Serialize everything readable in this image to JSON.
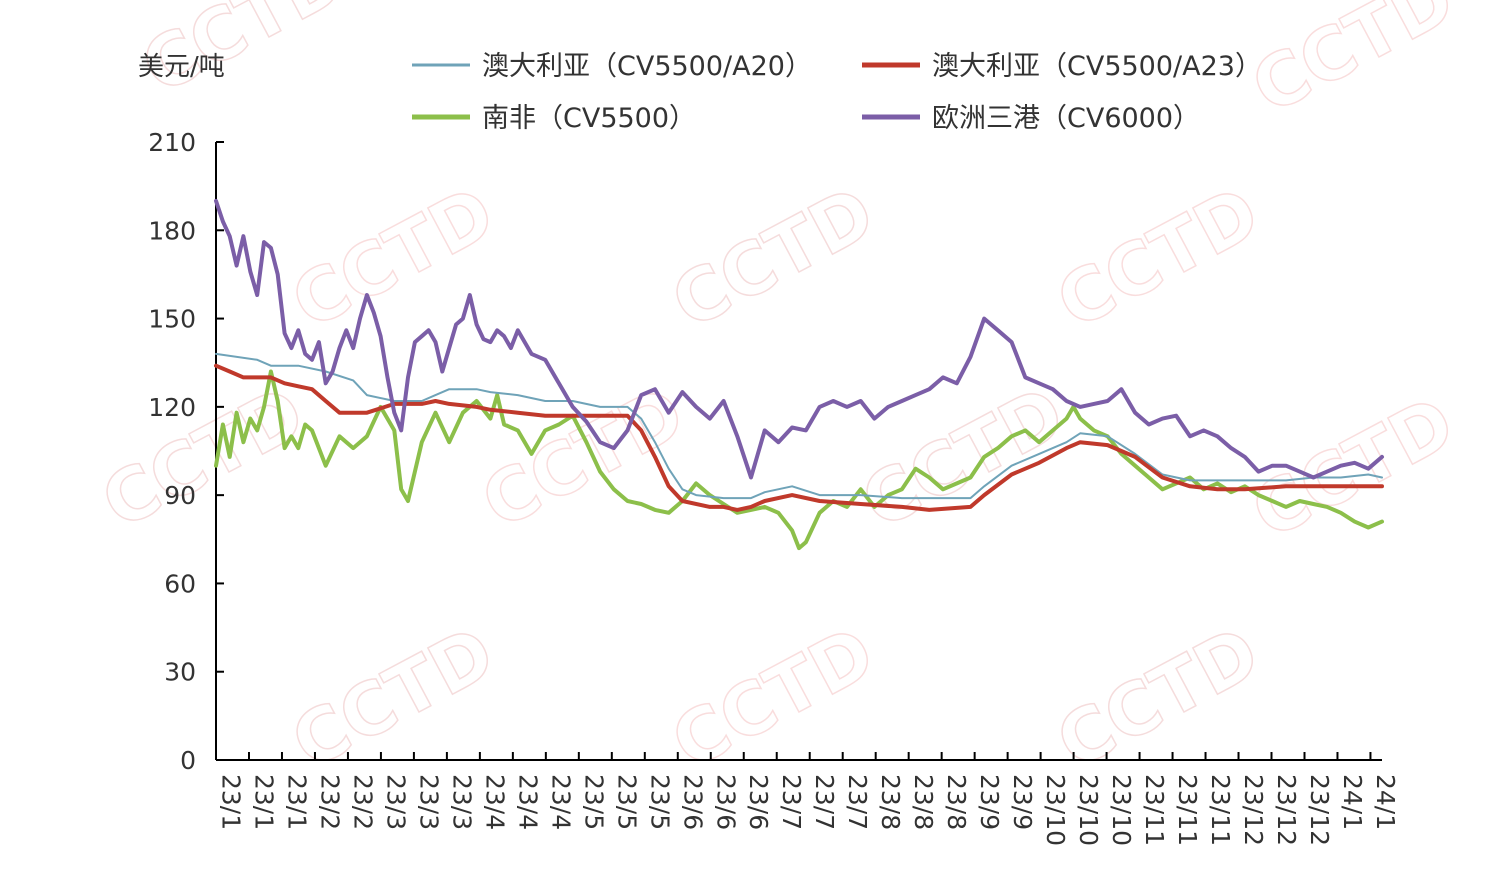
{
  "watermark": "CCTD",
  "chart_data": {
    "type": "line",
    "ylabel": "美元/吨",
    "ylim": [
      0,
      210
    ],
    "yticks": [
      0,
      30,
      60,
      90,
      120,
      150,
      180,
      210
    ],
    "x_tick_labels": [
      "23/1",
      "23/1",
      "23/1",
      "23/2",
      "23/2",
      "23/3",
      "23/3",
      "23/3",
      "23/4",
      "23/4",
      "23/4",
      "23/5",
      "23/5",
      "23/5",
      "23/6",
      "23/6",
      "23/6",
      "23/7",
      "23/7",
      "23/7",
      "23/8",
      "23/8",
      "23/8",
      "23/9",
      "23/9",
      "23/10",
      "23/10",
      "23/10",
      "23/11",
      "23/11",
      "23/11",
      "23/12",
      "23/12",
      "23/12",
      "24/1",
      "24/1"
    ],
    "legend_position": "top",
    "series": [
      {
        "name": "澳大利亚（CV5500/A20）",
        "color": "#6fa3b8",
        "values": [
          [
            0,
            138
          ],
          [
            3,
            136
          ],
          [
            4,
            134
          ],
          [
            6,
            134
          ],
          [
            8,
            132
          ],
          [
            10,
            129
          ],
          [
            11,
            124
          ],
          [
            13,
            122
          ],
          [
            15,
            122
          ],
          [
            16,
            124
          ],
          [
            17,
            126
          ],
          [
            19,
            126
          ],
          [
            20,
            125
          ],
          [
            22,
            124
          ],
          [
            24,
            122
          ],
          [
            26,
            122
          ],
          [
            28,
            120
          ],
          [
            30,
            120
          ],
          [
            31,
            116
          ],
          [
            32,
            108
          ],
          [
            33,
            99
          ],
          [
            34,
            92
          ],
          [
            35,
            90
          ],
          [
            37,
            89
          ],
          [
            39,
            89
          ],
          [
            40,
            91
          ],
          [
            42,
            93
          ],
          [
            44,
            90
          ],
          [
            47,
            90
          ],
          [
            50,
            89
          ],
          [
            52,
            89
          ],
          [
            55,
            89
          ],
          [
            56,
            93
          ],
          [
            58,
            100
          ],
          [
            60,
            104
          ],
          [
            62,
            108
          ],
          [
            63,
            111
          ],
          [
            65,
            110
          ],
          [
            67,
            104
          ],
          [
            69,
            97
          ],
          [
            71,
            95
          ],
          [
            73,
            95
          ],
          [
            75,
            95
          ],
          [
            78,
            95
          ],
          [
            80,
            96
          ],
          [
            82,
            96
          ],
          [
            84,
            97
          ],
          [
            85,
            96
          ]
        ]
      },
      {
        "name": "澳大利亚（CV5500/A23）",
        "color": "#c0392b",
        "values": [
          [
            0,
            134
          ],
          [
            1,
            132
          ],
          [
            2,
            130
          ],
          [
            4,
            130
          ],
          [
            5,
            128
          ],
          [
            6,
            127
          ],
          [
            7,
            126
          ],
          [
            8,
            122
          ],
          [
            9,
            118
          ],
          [
            11,
            118
          ],
          [
            13,
            121
          ],
          [
            15,
            121
          ],
          [
            16,
            122
          ],
          [
            17,
            121
          ],
          [
            19,
            120
          ],
          [
            20,
            119
          ],
          [
            22,
            118
          ],
          [
            24,
            117
          ],
          [
            26,
            117
          ],
          [
            28,
            117
          ],
          [
            30,
            117
          ],
          [
            31,
            112
          ],
          [
            32,
            103
          ],
          [
            33,
            93
          ],
          [
            34,
            88
          ],
          [
            36,
            86
          ],
          [
            37,
            86
          ],
          [
            38,
            85
          ],
          [
            39,
            86
          ],
          [
            40,
            88
          ],
          [
            42,
            90
          ],
          [
            44,
            88
          ],
          [
            47,
            87
          ],
          [
            50,
            86
          ],
          [
            52,
            85
          ],
          [
            55,
            86
          ],
          [
            56,
            90
          ],
          [
            58,
            97
          ],
          [
            60,
            101
          ],
          [
            62,
            106
          ],
          [
            63,
            108
          ],
          [
            65,
            107
          ],
          [
            67,
            103
          ],
          [
            69,
            96
          ],
          [
            71,
            93
          ],
          [
            73,
            92
          ],
          [
            75,
            92
          ],
          [
            78,
            93
          ],
          [
            80,
            93
          ],
          [
            82,
            93
          ],
          [
            84,
            93
          ],
          [
            85,
            93
          ]
        ]
      },
      {
        "name": "南非（CV5500）",
        "color": "#8cbf4a",
        "values": [
          [
            0,
            100
          ],
          [
            0.5,
            114
          ],
          [
            1,
            103
          ],
          [
            1.5,
            118
          ],
          [
            2,
            108
          ],
          [
            2.5,
            116
          ],
          [
            3,
            112
          ],
          [
            3.5,
            120
          ],
          [
            4,
            132
          ],
          [
            4.5,
            122
          ],
          [
            5,
            106
          ],
          [
            5.5,
            110
          ],
          [
            6,
            106
          ],
          [
            6.5,
            114
          ],
          [
            7,
            112
          ],
          [
            8,
            100
          ],
          [
            9,
            110
          ],
          [
            10,
            106
          ],
          [
            11,
            110
          ],
          [
            12,
            120
          ],
          [
            13,
            112
          ],
          [
            13.5,
            92
          ],
          [
            14,
            88
          ],
          [
            15,
            108
          ],
          [
            16,
            118
          ],
          [
            17,
            108
          ],
          [
            18,
            118
          ],
          [
            19,
            122
          ],
          [
            20,
            116
          ],
          [
            20.5,
            124
          ],
          [
            21,
            114
          ],
          [
            22,
            112
          ],
          [
            23,
            104
          ],
          [
            24,
            112
          ],
          [
            25,
            114
          ],
          [
            26,
            117
          ],
          [
            27,
            108
          ],
          [
            28,
            98
          ],
          [
            29,
            92
          ],
          [
            30,
            88
          ],
          [
            31,
            87
          ],
          [
            32,
            85
          ],
          [
            33,
            84
          ],
          [
            34,
            88
          ],
          [
            35,
            94
          ],
          [
            36,
            90
          ],
          [
            37,
            87
          ],
          [
            38,
            84
          ],
          [
            39,
            85
          ],
          [
            40,
            86
          ],
          [
            41,
            84
          ],
          [
            42,
            78
          ],
          [
            42.5,
            72
          ],
          [
            43,
            74
          ],
          [
            44,
            84
          ],
          [
            45,
            88
          ],
          [
            46,
            86
          ],
          [
            47,
            92
          ],
          [
            48,
            86
          ],
          [
            49,
            90
          ],
          [
            50,
            92
          ],
          [
            51,
            99
          ],
          [
            52,
            96
          ],
          [
            53,
            92
          ],
          [
            54,
            94
          ],
          [
            55,
            96
          ],
          [
            56,
            103
          ],
          [
            57,
            106
          ],
          [
            58,
            110
          ],
          [
            59,
            112
          ],
          [
            60,
            108
          ],
          [
            61,
            112
          ],
          [
            62,
            116
          ],
          [
            62.5,
            120
          ],
          [
            63,
            116
          ],
          [
            64,
            112
          ],
          [
            65,
            110
          ],
          [
            66,
            104
          ],
          [
            67,
            100
          ],
          [
            68,
            96
          ],
          [
            69,
            92
          ],
          [
            70,
            94
          ],
          [
            71,
            96
          ],
          [
            72,
            92
          ],
          [
            73,
            94
          ],
          [
            74,
            91
          ],
          [
            75,
            93
          ],
          [
            76,
            90
          ],
          [
            77,
            88
          ],
          [
            78,
            86
          ],
          [
            79,
            88
          ],
          [
            80,
            87
          ],
          [
            81,
            86
          ],
          [
            82,
            84
          ],
          [
            83,
            81
          ],
          [
            84,
            79
          ],
          [
            85,
            81
          ]
        ]
      },
      {
        "name": "欧洲三港（CV6000）",
        "color": "#7b5ea7",
        "values": [
          [
            0,
            190
          ],
          [
            0.5,
            183
          ],
          [
            1,
            178
          ],
          [
            1.5,
            168
          ],
          [
            2,
            178
          ],
          [
            2.5,
            166
          ],
          [
            3,
            158
          ],
          [
            3.5,
            176
          ],
          [
            4,
            174
          ],
          [
            4.5,
            165
          ],
          [
            5,
            145
          ],
          [
            5.5,
            140
          ],
          [
            6,
            146
          ],
          [
            6.5,
            138
          ],
          [
            7,
            136
          ],
          [
            7.5,
            142
          ],
          [
            8,
            128
          ],
          [
            8.5,
            132
          ],
          [
            9,
            140
          ],
          [
            9.5,
            146
          ],
          [
            10,
            140
          ],
          [
            10.5,
            150
          ],
          [
            11,
            158
          ],
          [
            11.5,
            152
          ],
          [
            12,
            144
          ],
          [
            12.5,
            130
          ],
          [
            13,
            118
          ],
          [
            13.5,
            112
          ],
          [
            14,
            130
          ],
          [
            14.5,
            142
          ],
          [
            15,
            144
          ],
          [
            15.5,
            146
          ],
          [
            16,
            142
          ],
          [
            16.5,
            132
          ],
          [
            17,
            140
          ],
          [
            17.5,
            148
          ],
          [
            18,
            150
          ],
          [
            18.5,
            158
          ],
          [
            19,
            148
          ],
          [
            19.5,
            143
          ],
          [
            20,
            142
          ],
          [
            20.5,
            146
          ],
          [
            21,
            144
          ],
          [
            21.5,
            140
          ],
          [
            22,
            146
          ],
          [
            23,
            138
          ],
          [
            24,
            136
          ],
          [
            25,
            128
          ],
          [
            26,
            120
          ],
          [
            27,
            115
          ],
          [
            28,
            108
          ],
          [
            29,
            106
          ],
          [
            30,
            112
          ],
          [
            31,
            124
          ],
          [
            32,
            126
          ],
          [
            33,
            118
          ],
          [
            34,
            125
          ],
          [
            35,
            120
          ],
          [
            36,
            116
          ],
          [
            37,
            122
          ],
          [
            38,
            110
          ],
          [
            39,
            96
          ],
          [
            40,
            112
          ],
          [
            41,
            108
          ],
          [
            42,
            113
          ],
          [
            43,
            112
          ],
          [
            44,
            120
          ],
          [
            45,
            122
          ],
          [
            46,
            120
          ],
          [
            47,
            122
          ],
          [
            48,
            116
          ],
          [
            49,
            120
          ],
          [
            50,
            122
          ],
          [
            51,
            124
          ],
          [
            52,
            126
          ],
          [
            53,
            130
          ],
          [
            54,
            128
          ],
          [
            55,
            137
          ],
          [
            56,
            150
          ],
          [
            57,
            146
          ],
          [
            58,
            142
          ],
          [
            59,
            130
          ],
          [
            60,
            128
          ],
          [
            61,
            126
          ],
          [
            62,
            122
          ],
          [
            63,
            120
          ],
          [
            64,
            121
          ],
          [
            65,
            122
          ],
          [
            66,
            126
          ],
          [
            67,
            118
          ],
          [
            68,
            114
          ],
          [
            69,
            116
          ],
          [
            70,
            117
          ],
          [
            71,
            110
          ],
          [
            72,
            112
          ],
          [
            73,
            110
          ],
          [
            74,
            106
          ],
          [
            75,
            103
          ],
          [
            76,
            98
          ],
          [
            77,
            100
          ],
          [
            78,
            100
          ],
          [
            79,
            98
          ],
          [
            80,
            96
          ],
          [
            81,
            98
          ],
          [
            82,
            100
          ],
          [
            83,
            101
          ],
          [
            84,
            99
          ],
          [
            85,
            103
          ]
        ]
      }
    ]
  }
}
